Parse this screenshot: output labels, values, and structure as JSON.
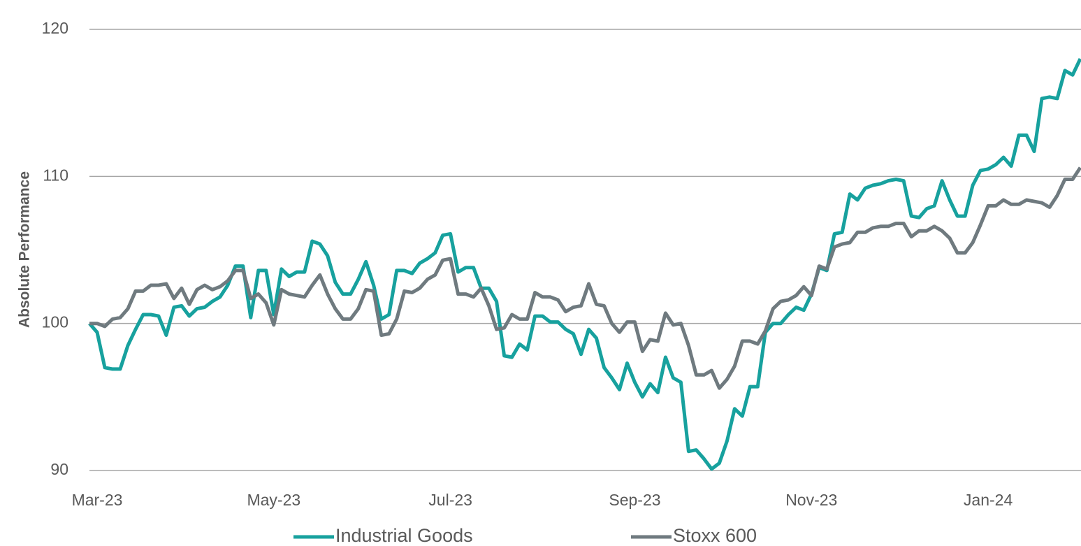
{
  "chart_data": {
    "type": "line",
    "y_label": "Absolute Performance",
    "categories": [
      null,
      "Mar-23",
      null,
      null,
      null,
      null,
      null,
      null,
      null,
      null,
      null,
      null,
      null,
      null,
      null,
      null,
      null,
      null,
      null,
      null,
      null,
      null,
      null,
      null,
      "May-23",
      null,
      null,
      null,
      null,
      null,
      null,
      null,
      null,
      null,
      null,
      null,
      null,
      null,
      null,
      null,
      null,
      null,
      null,
      null,
      null,
      null,
      null,
      "Jul-23",
      null,
      null,
      null,
      null,
      null,
      null,
      null,
      null,
      null,
      null,
      null,
      null,
      null,
      null,
      null,
      null,
      null,
      null,
      null,
      null,
      null,
      null,
      null,
      "Sep-23",
      null,
      null,
      null,
      null,
      null,
      null,
      null,
      null,
      null,
      null,
      null,
      null,
      null,
      null,
      null,
      null,
      null,
      null,
      null,
      null,
      null,
      null,
      "Nov-23",
      null,
      null,
      null,
      null,
      null,
      null,
      null,
      null,
      null,
      null,
      null,
      null,
      null,
      null,
      null,
      null,
      null,
      null,
      null,
      null,
      null,
      null,
      "Jan-24",
      null,
      null,
      null,
      null,
      null,
      null,
      null,
      null,
      null,
      null,
      null,
      null
    ],
    "series": [
      {
        "name": "Industrial Goods",
        "color": "#17a19e",
        "values": [
          100,
          99.4,
          97,
          96.9,
          96.9,
          98.5,
          99.6,
          100.6,
          100.6,
          100.5,
          99.2,
          101.1,
          101.2,
          100.5,
          101,
          101.1,
          101.5,
          101.8,
          102.6,
          103.9,
          103.9,
          100.4,
          103.6,
          103.6,
          100.6,
          103.7,
          103.2,
          103.5,
          103.5,
          105.6,
          105.4,
          104.6,
          102.8,
          102,
          102,
          103,
          104.2,
          102.6,
          100.3,
          100.6,
          103.6,
          103.6,
          103.4,
          104.1,
          104.4,
          104.8,
          106,
          106.1,
          103.5,
          103.8,
          103.8,
          102.4,
          102.4,
          101.5,
          97.8,
          97.7,
          98.6,
          98.2,
          100.5,
          100.5,
          100.1,
          100.1,
          99.6,
          99.3,
          97.9,
          99.6,
          99,
          97,
          96.3,
          95.5,
          97.3,
          96,
          95,
          95.9,
          95.3,
          97.7,
          96.3,
          96,
          91.3,
          91.4,
          90.8,
          90.1,
          90.5,
          92,
          94.2,
          93.7,
          95.7,
          95.7,
          99.4,
          100,
          100,
          100.6,
          101.1,
          100.9,
          102,
          103.8,
          103.6,
          106.1,
          106.2,
          108.8,
          108.4,
          109.2,
          109.4,
          109.5,
          109.7,
          109.8,
          109.7,
          107.3,
          107.2,
          107.8,
          108,
          109.7,
          108.4,
          107.3,
          107.3,
          109.4,
          110.4,
          110.5,
          110.8,
          111.3,
          110.7,
          112.8,
          112.8,
          111.7,
          115.3,
          115.4,
          115.3,
          117.2,
          116.9,
          118
        ]
      },
      {
        "name": "Stoxx 600",
        "color": "#6f7a7f",
        "values": [
          100,
          100,
          99.8,
          100.3,
          100.4,
          101,
          102.2,
          102.2,
          102.6,
          102.6,
          102.7,
          101.7,
          102.4,
          101.3,
          102.3,
          102.6,
          102.3,
          102.5,
          102.9,
          103.6,
          103.6,
          101.7,
          102,
          101.4,
          99.9,
          102.3,
          102,
          101.9,
          101.8,
          102.6,
          103.3,
          102,
          101,
          100.3,
          100.3,
          101,
          102.3,
          102.2,
          99.2,
          99.3,
          100.3,
          102.2,
          102.1,
          102.4,
          103,
          103.3,
          104.3,
          104.4,
          102,
          102,
          101.8,
          102.4,
          101.2,
          99.6,
          99.7,
          100.6,
          100.3,
          100.3,
          102.1,
          101.8,
          101.8,
          101.6,
          100.8,
          101.1,
          101.2,
          102.7,
          101.3,
          101.2,
          100,
          99.4,
          100.1,
          100.1,
          98.1,
          98.9,
          98.8,
          100.7,
          99.9,
          100,
          98.5,
          96.5,
          96.5,
          96.8,
          95.6,
          96.2,
          97.1,
          98.8,
          98.8,
          98.6,
          99.5,
          101,
          101.5,
          101.6,
          101.9,
          102.5,
          101.9,
          103.9,
          103.7,
          105.2,
          105.4,
          105.5,
          106.2,
          106.2,
          106.5,
          106.6,
          106.6,
          106.8,
          106.8,
          105.9,
          106.3,
          106.3,
          106.6,
          106.3,
          105.8,
          104.8,
          104.8,
          105.5,
          106.7,
          108,
          108,
          108.4,
          108.1,
          108.1,
          108.4,
          108.3,
          108.2,
          107.9,
          108.7,
          109.8,
          109.8,
          110.6
        ]
      }
    ],
    "ylim": [
      90,
      120
    ],
    "yticks": [
      90,
      100,
      110,
      120
    ],
    "grid": true,
    "legend": "bottom"
  }
}
